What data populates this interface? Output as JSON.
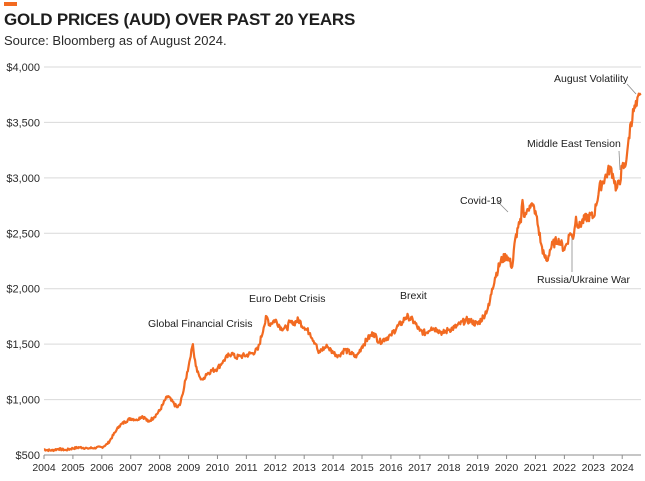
{
  "header": {
    "title": "GOLD PRICES (AUD) OVER PAST 20 YEARS",
    "subtitle": "Source: Bloomberg as of August 2024."
  },
  "colors": {
    "line": "#f26a21",
    "accent": "#f26a21",
    "grid": "#d9d9d9",
    "axis_text": "#2a2a2a",
    "annotation_text": "#1d1d1d",
    "leader": "#8a8a8a"
  },
  "chart_data": {
    "type": "line",
    "title": "GOLD PRICES (AUD) OVER PAST 20 YEARS",
    "xlabel": "",
    "ylabel": "",
    "xlim": [
      2004.0,
      2024.65
    ],
    "ylim": [
      500,
      4000
    ],
    "grid": true,
    "x_ticks": [
      "2004",
      "2005",
      "2006",
      "2007",
      "2008",
      "2009",
      "2010",
      "2011",
      "2012",
      "2013",
      "2014",
      "2015",
      "2016",
      "2017",
      "2018",
      "2019",
      "2020",
      "2021",
      "2022",
      "2023",
      "2024"
    ],
    "y_ticks": [
      {
        "value": 500,
        "label": "$500"
      },
      {
        "value": 1000,
        "label": "$1,000"
      },
      {
        "value": 1500,
        "label": "$1,500"
      },
      {
        "value": 2000,
        "label": "$2,000"
      },
      {
        "value": 2500,
        "label": "$2,500"
      },
      {
        "value": 3000,
        "label": "$3,000"
      },
      {
        "value": 3500,
        "label": "$3,500"
      },
      {
        "value": 4000,
        "label": "$4,000"
      }
    ],
    "series": [
      {
        "name": "Gold price (AUD)",
        "x": [
          2004.0,
          2004.25,
          2004.5,
          2004.75,
          2005.0,
          2005.25,
          2005.5,
          2005.75,
          2006.0,
          2006.2,
          2006.4,
          2006.5,
          2006.6,
          2006.8,
          2007.0,
          2007.2,
          2007.4,
          2007.5,
          2007.6,
          2007.8,
          2008.0,
          2008.1,
          2008.2,
          2008.3,
          2008.4,
          2008.5,
          2008.6,
          2008.7,
          2008.8,
          2008.9,
          2009.0,
          2009.1,
          2009.15,
          2009.2,
          2009.3,
          2009.4,
          2009.5,
          2009.6,
          2009.8,
          2010.0,
          2010.2,
          2010.4,
          2010.5,
          2010.6,
          2010.8,
          2011.0,
          2011.2,
          2011.4,
          2011.6,
          2011.7,
          2011.8,
          2012.0,
          2012.2,
          2012.4,
          2012.5,
          2012.6,
          2012.8,
          2013.0,
          2013.2,
          2013.4,
          2013.5,
          2013.6,
          2013.8,
          2014.0,
          2014.2,
          2014.4,
          2014.6,
          2014.8,
          2015.0,
          2015.2,
          2015.4,
          2015.6,
          2015.8,
          2016.0,
          2016.2,
          2016.4,
          2016.5,
          2016.6,
          2016.8,
          2017.0,
          2017.2,
          2017.4,
          2017.6,
          2017.8,
          2018.0,
          2018.2,
          2018.4,
          2018.6,
          2018.8,
          2019.0,
          2019.2,
          2019.4,
          2019.5,
          2019.6,
          2019.8,
          2020.0,
          2020.1,
          2020.2,
          2020.3,
          2020.4,
          2020.5,
          2020.55,
          2020.6,
          2020.7,
          2020.8,
          2020.9,
          2021.0,
          2021.1,
          2021.2,
          2021.3,
          2021.4,
          2021.5,
          2021.6,
          2021.8,
          2022.0,
          2022.2,
          2022.3,
          2022.4,
          2022.5,
          2022.6,
          2022.8,
          2023.0,
          2023.1,
          2023.2,
          2023.4,
          2023.6,
          2023.7,
          2023.8,
          2023.9,
          2024.0,
          2024.1,
          2024.2,
          2024.3,
          2024.4,
          2024.5,
          2024.6,
          2024.65
        ],
        "values": [
          550,
          540,
          555,
          545,
          560,
          570,
          560,
          565,
          570,
          600,
          680,
          720,
          760,
          800,
          830,
          820,
          850,
          830,
          800,
          840,
          900,
          950,
          1000,
          1030,
          990,
          960,
          930,
          950,
          1050,
          1180,
          1300,
          1450,
          1500,
          1380,
          1250,
          1200,
          1180,
          1230,
          1260,
          1280,
          1350,
          1400,
          1420,
          1380,
          1390,
          1400,
          1420,
          1450,
          1650,
          1750,
          1680,
          1720,
          1650,
          1640,
          1700,
          1680,
          1720,
          1650,
          1600,
          1500,
          1420,
          1450,
          1480,
          1420,
          1400,
          1450,
          1420,
          1380,
          1480,
          1550,
          1600,
          1520,
          1550,
          1580,
          1650,
          1700,
          1740,
          1750,
          1700,
          1620,
          1600,
          1650,
          1630,
          1600,
          1630,
          1650,
          1680,
          1720,
          1700,
          1680,
          1750,
          1850,
          2000,
          2100,
          2250,
          2300,
          2250,
          2200,
          2450,
          2550,
          2600,
          2800,
          2650,
          2700,
          2750,
          2750,
          2700,
          2550,
          2400,
          2300,
          2250,
          2350,
          2400,
          2450,
          2350,
          2500,
          2450,
          2650,
          2550,
          2600,
          2650,
          2650,
          2750,
          2900,
          3000,
          3100,
          3000,
          2900,
          2950,
          3100,
          3100,
          3300,
          3500,
          3600,
          3650,
          3750,
          3760
        ]
      }
    ],
    "annotations": [
      {
        "text": "Global Financial Crisis",
        "x": 2009.15,
        "y": 1530
      },
      {
        "text": "Euro Debt Crisis",
        "x": 2011.8,
        "y": 1760
      },
      {
        "text": "Brexit",
        "x": 2016.6,
        "y": 1780
      },
      {
        "text": "Covid-19",
        "x": 2020.55,
        "y": 2800
      },
      {
        "text": "Russia/Ukraine War",
        "x": 2022.2,
        "y": 2700
      },
      {
        "text": "Middle East Tension",
        "x": 2023.9,
        "y": 3150
      },
      {
        "text": "August Volatility",
        "x": 2024.55,
        "y": 3780
      }
    ]
  }
}
